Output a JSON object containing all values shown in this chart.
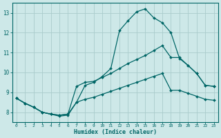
{
  "xlabel": "Humidex (Indice chaleur)",
  "background_color": "#cde8e8",
  "grid_color": "#aacccc",
  "line_color": "#006666",
  "xlim": [
    -0.5,
    23.5
  ],
  "ylim": [
    7.5,
    13.5
  ],
  "yticks": [
    8,
    9,
    10,
    11,
    12,
    13
  ],
  "xticks": [
    0,
    1,
    2,
    3,
    4,
    5,
    6,
    7,
    8,
    9,
    10,
    11,
    12,
    13,
    14,
    15,
    16,
    17,
    18,
    19,
    20,
    21,
    22,
    23
  ],
  "line1_x": [
    0,
    1,
    2,
    3,
    4,
    5,
    6,
    7,
    8,
    9,
    10,
    11,
    12,
    13,
    14,
    15,
    16,
    17,
    18,
    19,
    20,
    21,
    22,
    23
  ],
  "line1_y": [
    8.7,
    8.45,
    8.25,
    8.0,
    7.9,
    7.8,
    7.85,
    8.5,
    9.35,
    9.5,
    9.8,
    10.2,
    12.1,
    12.6,
    13.05,
    13.2,
    12.75,
    12.5,
    12.0,
    10.7,
    10.35,
    9.95,
    9.35,
    9.3
  ],
  "line2_x": [
    0,
    1,
    2,
    3,
    4,
    5,
    6,
    7,
    8,
    9,
    10,
    11,
    12,
    13,
    14,
    15,
    16,
    17,
    18,
    19,
    20,
    21,
    22,
    23
  ],
  "line2_y": [
    8.7,
    8.45,
    8.25,
    8.0,
    7.9,
    7.85,
    7.9,
    9.3,
    9.5,
    9.55,
    9.75,
    9.95,
    10.2,
    10.45,
    10.65,
    10.85,
    11.1,
    11.35,
    10.75,
    10.75,
    10.35,
    9.95,
    9.35,
    9.3
  ],
  "line3_x": [
    0,
    1,
    2,
    3,
    4,
    5,
    6,
    7,
    8,
    9,
    10,
    11,
    12,
    13,
    14,
    15,
    16,
    17,
    18,
    19,
    20,
    21,
    22,
    23
  ],
  "line3_y": [
    8.7,
    8.45,
    8.25,
    8.0,
    7.9,
    7.85,
    7.9,
    8.5,
    8.65,
    8.75,
    8.9,
    9.05,
    9.2,
    9.35,
    9.5,
    9.65,
    9.8,
    9.95,
    9.1,
    9.1,
    8.95,
    8.8,
    8.65,
    8.6
  ]
}
